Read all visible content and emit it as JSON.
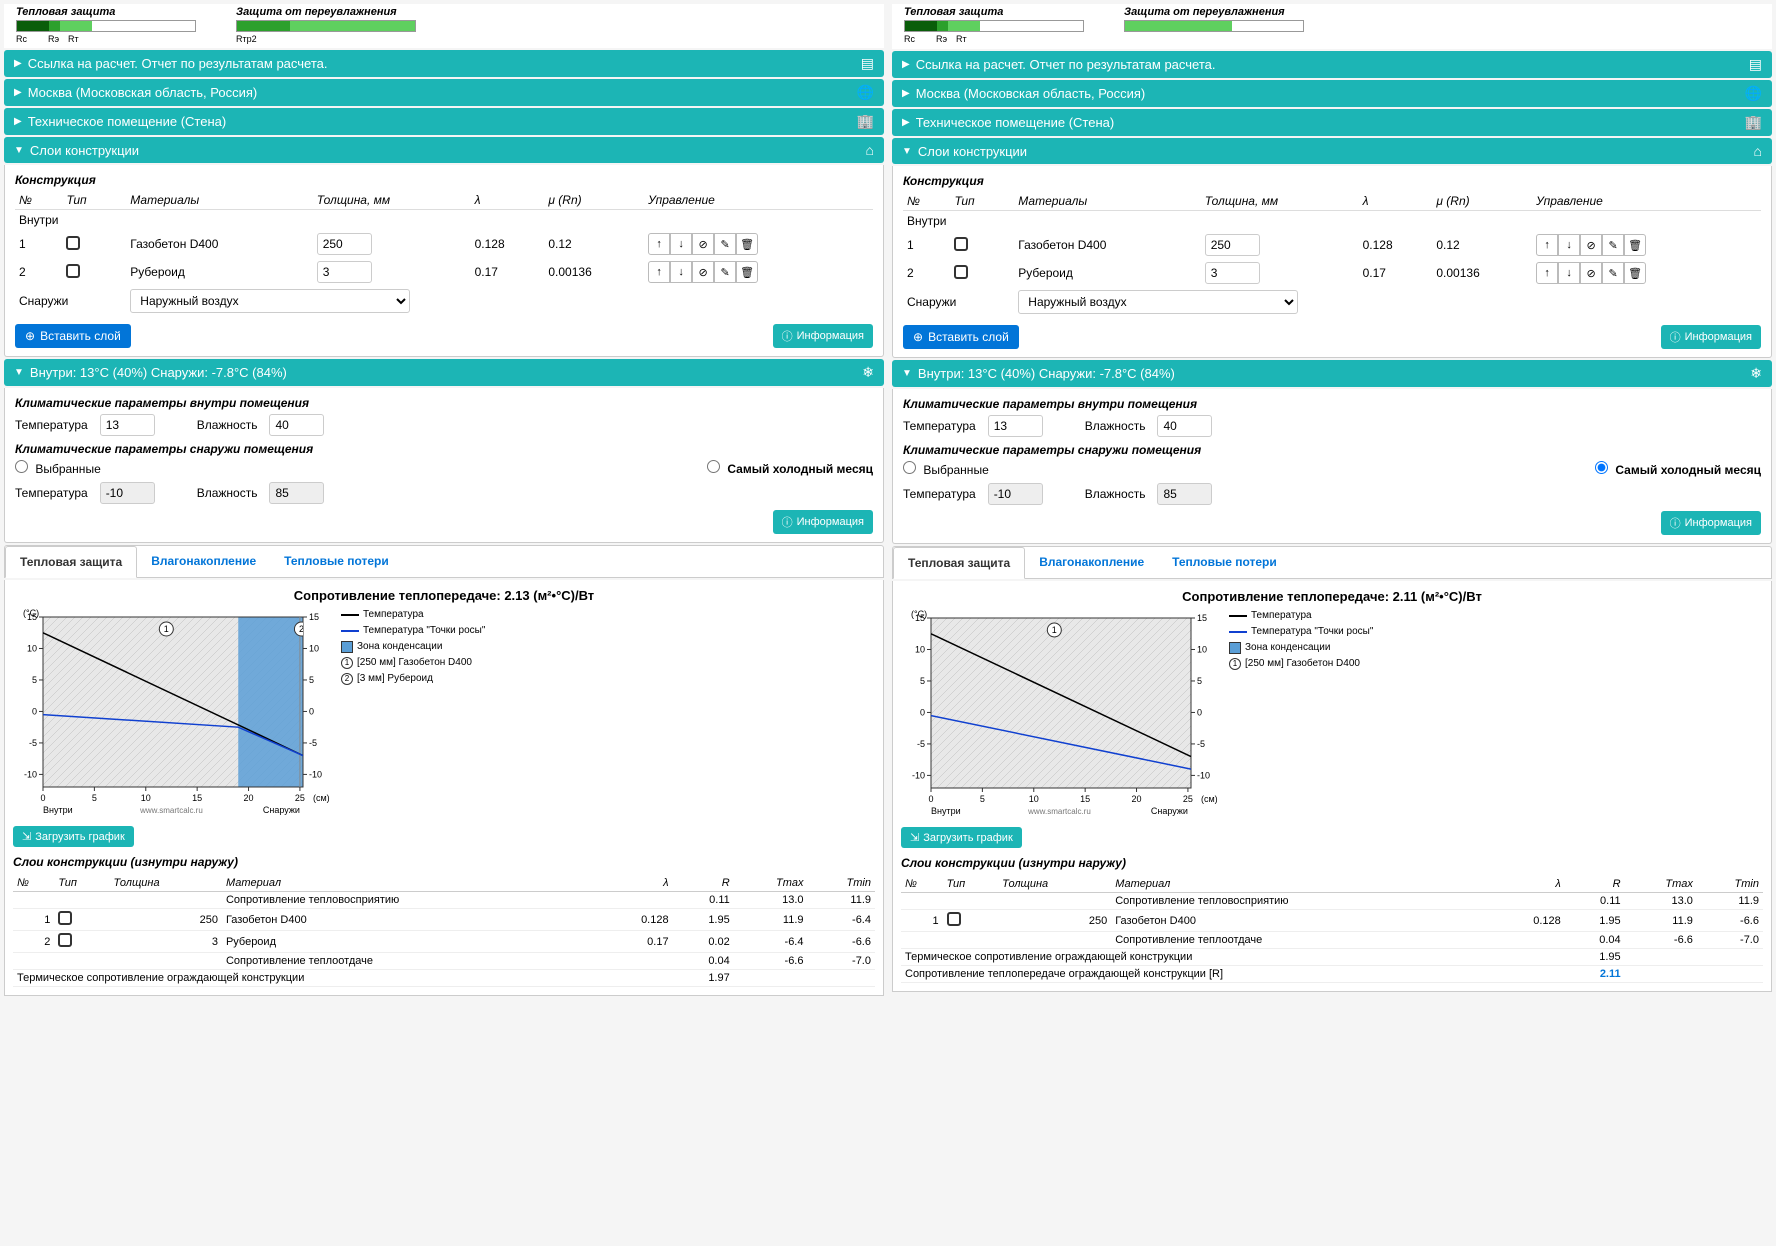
{
  "indicators": {
    "thermal_title": "Тепловая защита",
    "moisture_title": "Защита от переувлажнения",
    "labels_left": [
      "Rc",
      "Rэ",
      "Rт"
    ],
    "label_right_left": "Rтp2"
  },
  "accordions": {
    "report": "Ссылка на расчет. Отчет по результатам расчета.",
    "location": "Москва (Московская область, Россия)",
    "room": "Техническое помещение (Стена)",
    "layers": "Слои конструкции",
    "climate": "Внутри: 13°C (40%) Снаружи: -7.8°C (84%)"
  },
  "layers": {
    "title": "Конструкция",
    "headers": {
      "n": "№",
      "type": "Тип",
      "materials": "Материалы",
      "thickness": "Толщина, мм",
      "lambda": "λ",
      "mu": "μ (Rn)",
      "control": "Управление"
    },
    "inside": "Внутри",
    "outside": "Снаружи",
    "outside_sel": "Наружный воздух",
    "rows_left": [
      {
        "n": "1",
        "mat": "Газобетон D400",
        "th": "250",
        "l": "0.128",
        "m": "0.12"
      },
      {
        "n": "2",
        "mat": "Рубероид",
        "th": "3",
        "l": "0.17",
        "m": "0.00136"
      }
    ],
    "rows_right": [
      {
        "n": "1",
        "mat": "Газобетон D400",
        "th": "250",
        "l": "0.128",
        "m": "0.12"
      },
      {
        "n": "2",
        "mat": "Рубероид",
        "th": "3",
        "l": "0.17",
        "m": "0.00136"
      }
    ],
    "insert_btn": "Вставить слой",
    "info_btn": "Информация"
  },
  "climate": {
    "inside_title": "Климатические параметры внутри помещения",
    "outside_title": "Климатические параметры снаружи помещения",
    "temp_label": "Температура",
    "hum_label": "Влажность",
    "in_temp": "13",
    "in_hum": "40",
    "out_temp": "-10",
    "out_hum": "85",
    "radio_selected": "Выбранные",
    "radio_coldest": "Самый холодный месяц"
  },
  "tabs": {
    "t1": "Тепловая защита",
    "t2": "Влагонакопление",
    "t3": "Тепловые потери"
  },
  "chart_left": {
    "title": "Сопротивление теплопередаче: 2.13 (м²•°С)/Вт",
    "y_label": "(°С)",
    "x_label": "(см)",
    "x_ticks": [
      0,
      5,
      10,
      15,
      20,
      25
    ],
    "y_ticks": [
      -10,
      -5,
      0,
      5,
      10,
      15
    ],
    "x_in": "Внутри",
    "x_out": "Снаружи",
    "watermark": "www.smartcalc.ru",
    "legend": {
      "temp": "Температура",
      "dew": "Температура \"Точки росы\"",
      "cond": "Зона конденсации",
      "l1": "[250 мм] Газобетон D400",
      "l2": "[3 мм] Рубероид"
    },
    "cond_zone": [
      19,
      25.3
    ],
    "layer2_x": 25,
    "temp_line": [
      [
        0,
        12.5
      ],
      [
        25.3,
        -7
      ]
    ],
    "dew_line": [
      [
        0,
        -0.5
      ],
      [
        19,
        -2.5
      ],
      [
        25.3,
        -7
      ]
    ],
    "download": "Загрузить график"
  },
  "chart_right": {
    "title": "Сопротивление теплопередаче: 2.11 (м²•°С)/Вт",
    "legend": {
      "temp": "Температура",
      "dew": "Температура \"Точки росы\"",
      "cond": "Зона конденсации",
      "l1": "[250 мм] Газобетон D400"
    },
    "temp_line": [
      [
        0,
        12.5
      ],
      [
        25.3,
        -7
      ]
    ],
    "dew_line": [
      [
        0,
        -0.5
      ],
      [
        25.3,
        -9
      ]
    ]
  },
  "results_left": {
    "h": {
      "n": "№",
      "type": "Тип",
      "th": "Толщина",
      "mat": "Материал",
      "l": "λ",
      "r": "R",
      "tmax": "Tmax",
      "tmin": "Tmin"
    },
    "title": "Слои конструкции (изнутри наружу)",
    "rows": [
      {
        "mat": "Сопротивление тепловосприятию",
        "r": "0.11",
        "tmax": "13.0",
        "tmin": "11.9"
      },
      {
        "n": "1",
        "th": "250",
        "mat": "Газобетон D400",
        "l": "0.128",
        "r": "1.95",
        "tmax": "11.9",
        "tmin": "-6.4"
      },
      {
        "n": "2",
        "th": "3",
        "mat": "Рубероид",
        "l": "0.17",
        "r": "0.02",
        "tmax": "-6.4",
        "tmin": "-6.6"
      },
      {
        "mat": "Сопротивление теплоотдаче",
        "r": "0.04",
        "tmax": "-6.6",
        "tmin": "-7.0"
      }
    ],
    "summary1": {
      "label": "Термическое сопротивление ограждающей конструкции",
      "val": "1.97"
    }
  },
  "results_right": {
    "rows": [
      {
        "mat": "Сопротивление тепловосприятию",
        "r": "0.11",
        "tmax": "13.0",
        "tmin": "11.9"
      },
      {
        "n": "1",
        "th": "250",
        "mat": "Газобетон D400",
        "l": "0.128",
        "r": "1.95",
        "tmax": "11.9",
        "tmin": "-6.6"
      },
      {
        "mat": "Сопротивление теплоотдаче",
        "r": "0.04",
        "tmax": "-6.6",
        "tmin": "-7.0"
      }
    ],
    "summary1": {
      "label": "Термическое сопротивление ограждающей конструкции",
      "val": "1.95"
    },
    "summary2": {
      "label": "Сопротивление теплопередаче ограждающей конструкции [R]",
      "val": "2.11"
    }
  }
}
